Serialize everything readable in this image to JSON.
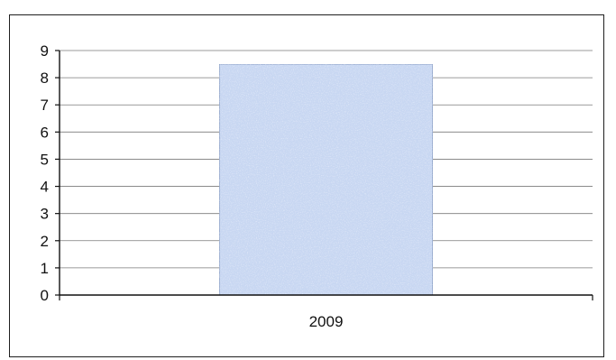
{
  "chart_data": {
    "type": "bar",
    "categories": [
      "2009"
    ],
    "values": [
      8.5
    ],
    "title": "",
    "xlabel": "",
    "ylabel": "",
    "ylim": [
      0,
      9
    ],
    "yticks": [
      0,
      1,
      2,
      3,
      4,
      5,
      6,
      7,
      8,
      9
    ],
    "grid": true,
    "legend": "none",
    "colors": {
      "bar_fill": "#c8d7f2",
      "bar_stroke": "#8fa3c8",
      "grid": "#7a7a7a",
      "axis": "#111111"
    }
  }
}
